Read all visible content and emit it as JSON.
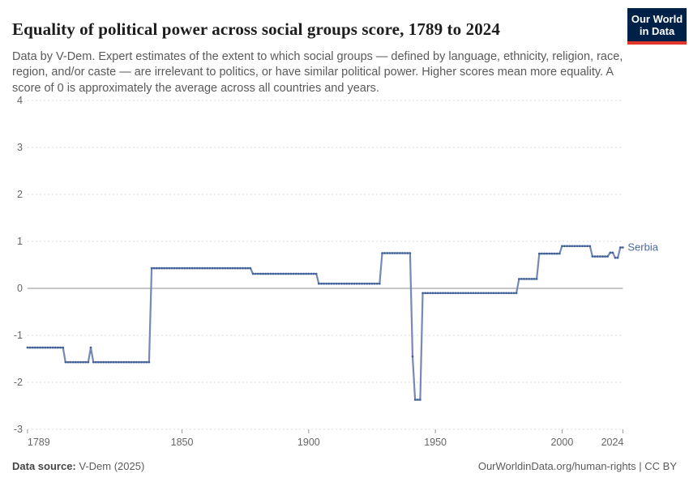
{
  "header": {
    "title": "Equality of political power across social groups score, 1789 to 2024",
    "subtitle": "Data by V-Dem. Expert estimates of the extent to which social groups — defined by language, ethnicity, religion, race, region, and/or caste — are irrelevant to politics, or have similar political power. Higher scores mean more equality. A score of 0 is approximately the average across all countries and years.",
    "logo": {
      "line1": "Our World",
      "line2": "in Data"
    }
  },
  "chart_data": {
    "type": "line",
    "title": "Equality of political power across social groups score, 1789 to 2024",
    "entity_label": "Serbia",
    "xlim": [
      1789,
      2024
    ],
    "ylim": [
      -3,
      4
    ],
    "x_ticks": [
      1789,
      1850,
      1900,
      1950,
      2000,
      2024
    ],
    "y_ticks": [
      4,
      3,
      2,
      1,
      0,
      -1,
      -2,
      -3
    ],
    "grid": "horizontal-dashed",
    "legend_position": "line-end",
    "series": [
      {
        "name": "Serbia",
        "segments": [
          {
            "from": 1789,
            "to": 1803,
            "value": -1.26
          },
          {
            "from": 1804,
            "to": 1813,
            "value": -1.57
          },
          {
            "from": 1814,
            "to": 1814,
            "value": -1.26
          },
          {
            "from": 1815,
            "to": 1837,
            "value": -1.57
          },
          {
            "from": 1838,
            "to": 1877,
            "value": 0.43
          },
          {
            "from": 1878,
            "to": 1903,
            "value": 0.31
          },
          {
            "from": 1904,
            "to": 1928,
            "value": 0.1
          },
          {
            "from": 1929,
            "to": 1940,
            "value": 0.75
          },
          {
            "from": 1941,
            "to": 1941,
            "value": -1.45
          },
          {
            "from": 1942,
            "to": 1944,
            "value": -2.37
          },
          {
            "from": 1945,
            "to": 1982,
            "value": -0.1
          },
          {
            "from": 1983,
            "to": 1990,
            "value": 0.2
          },
          {
            "from": 1991,
            "to": 1999,
            "value": 0.74
          },
          {
            "from": 2000,
            "to": 2011,
            "value": 0.9
          },
          {
            "from": 2012,
            "to": 2018,
            "value": 0.68
          },
          {
            "from": 2019,
            "to": 2020,
            "value": 0.76
          },
          {
            "from": 2021,
            "to": 2022,
            "value": 0.65
          },
          {
            "from": 2023,
            "to": 2024,
            "value": 0.87
          }
        ]
      }
    ],
    "colors": {
      "line": "#7589b4",
      "dot": "#3f5f97",
      "entity_label": "#4c6a9c",
      "gridline": "#dcdcdc",
      "zero_line": "#8f8f8f",
      "tick_text": "#666666",
      "tick_mark": "#999999"
    }
  },
  "footer": {
    "source_label": "Data source:",
    "source_value": " V-Dem (2025)",
    "credit": "OurWorldinData.org/human-rights | CC BY"
  }
}
